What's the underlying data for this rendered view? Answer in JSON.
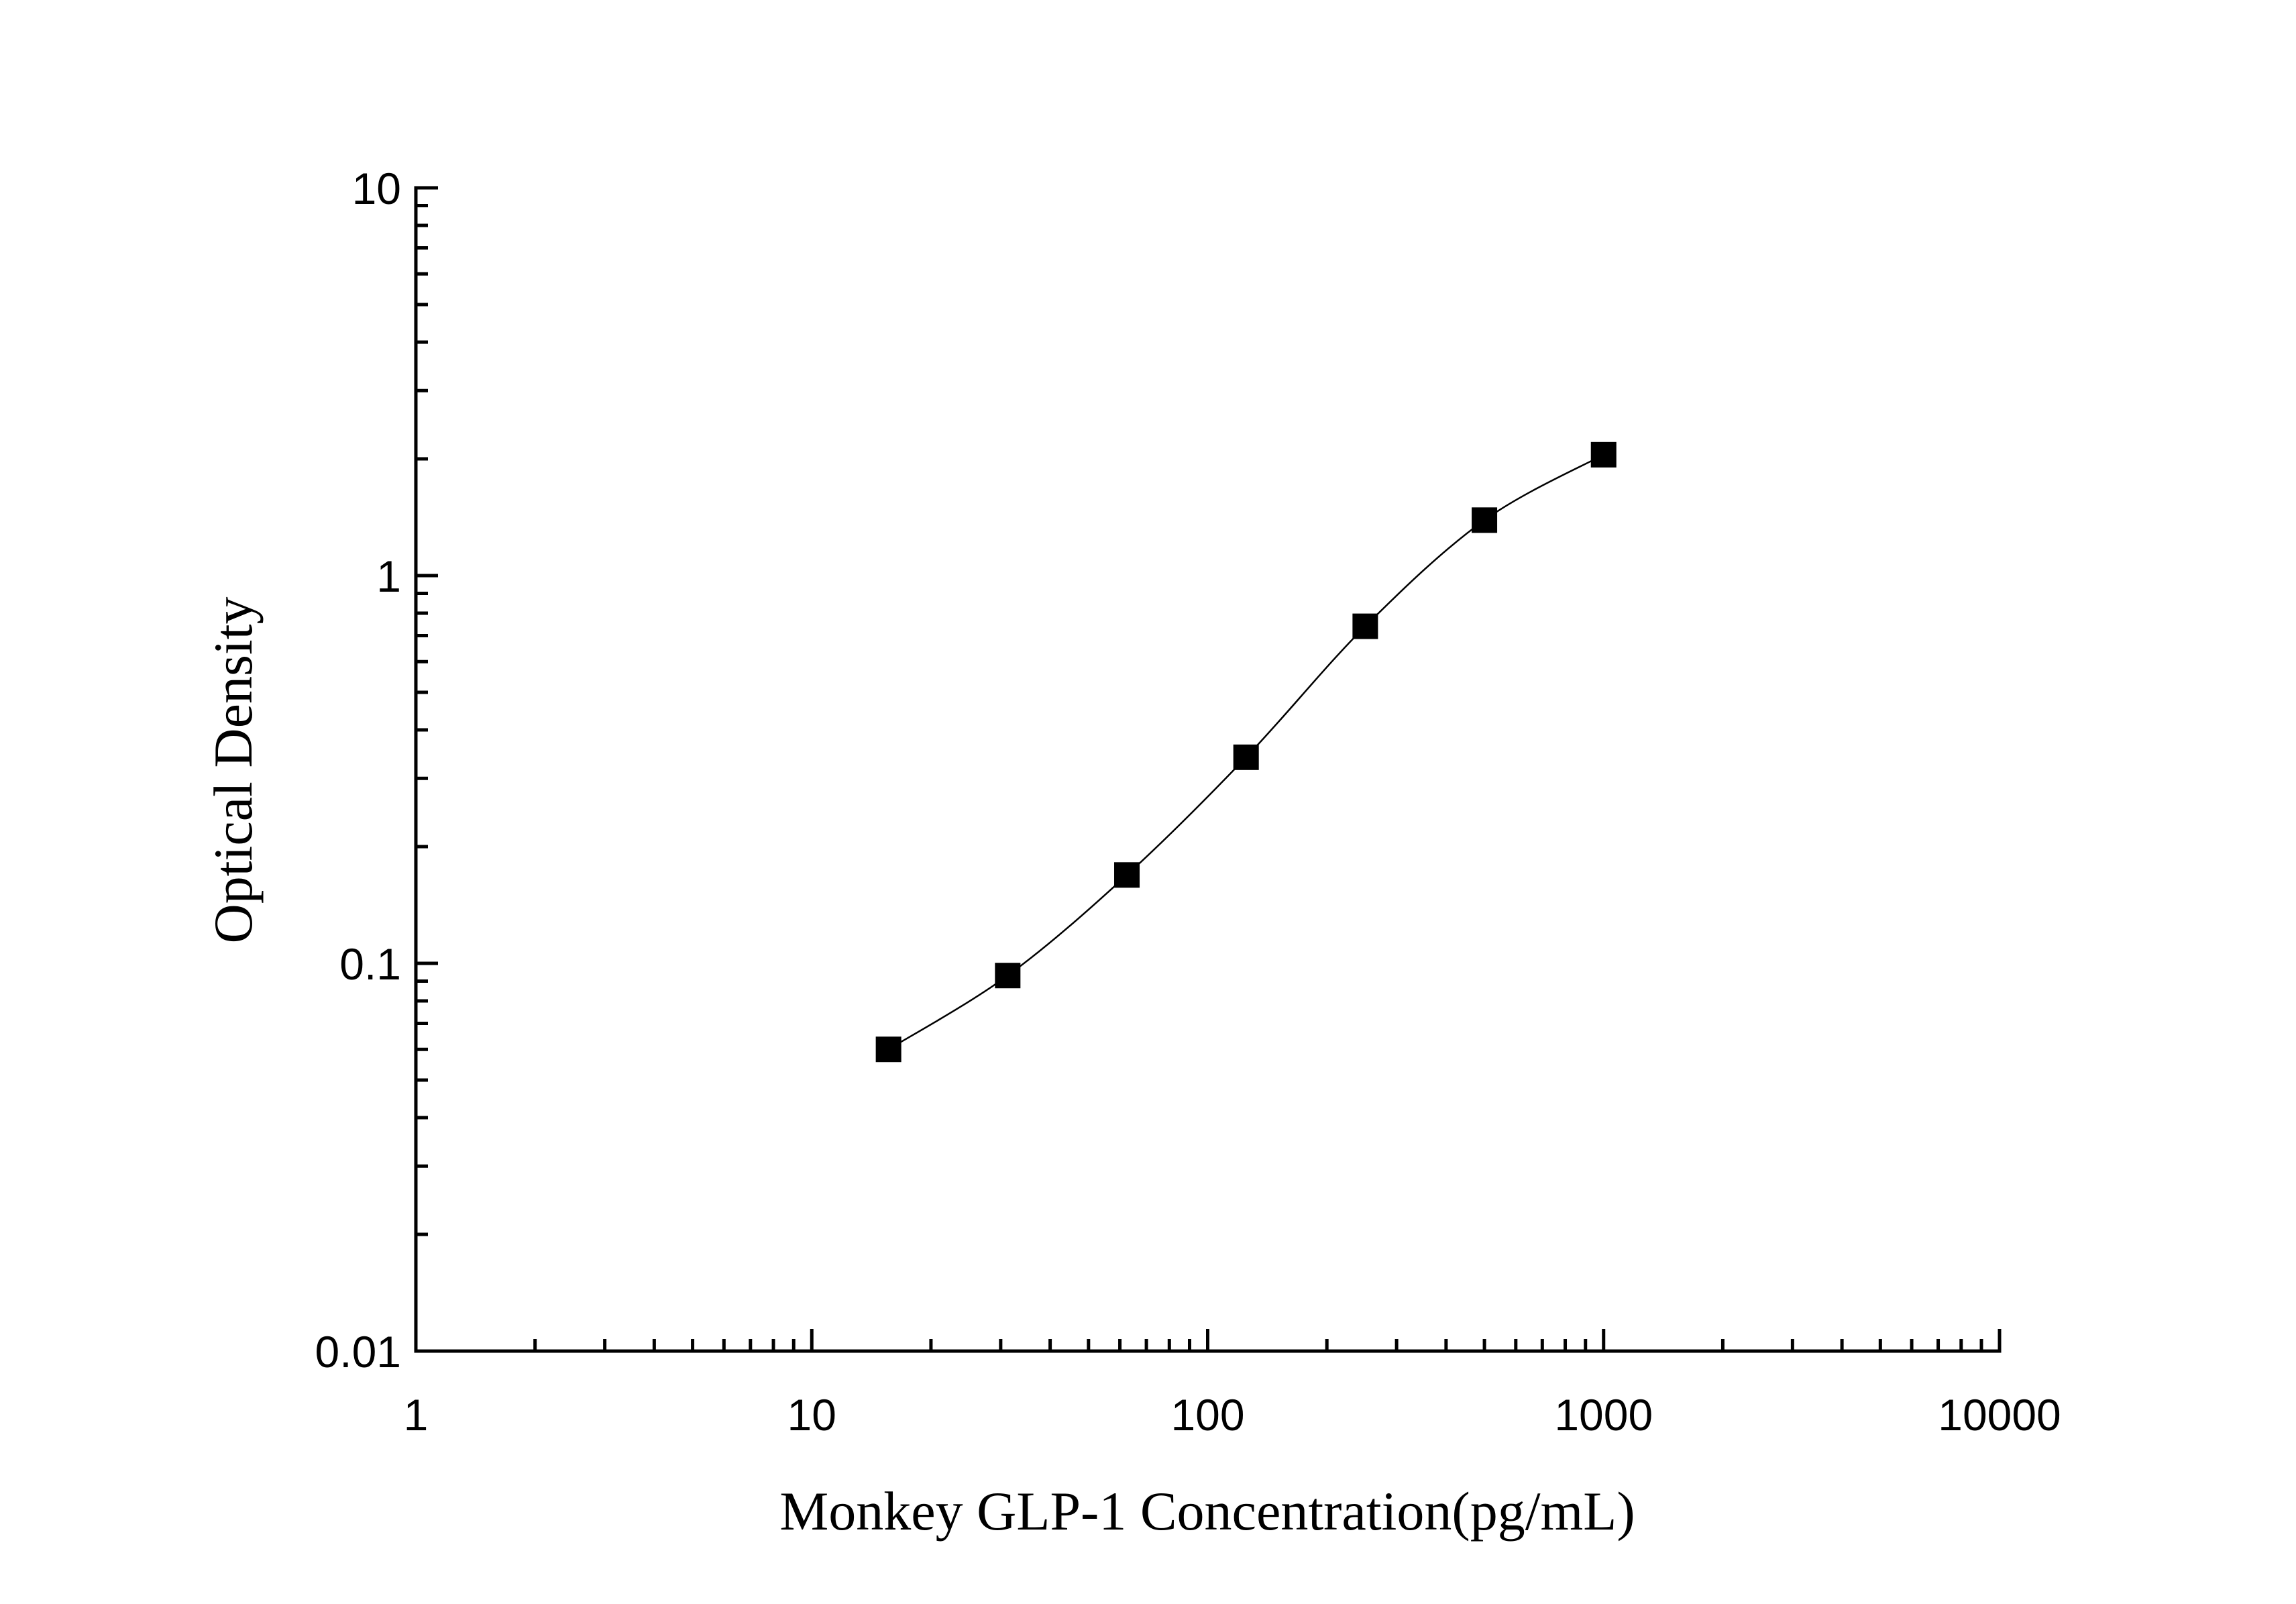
{
  "chart_data": {
    "type": "scatter",
    "x_label": "Monkey GLP-1 Concentration(pg/mL)",
    "y_label": "Optical Density",
    "x": [
      15.625,
      31.25,
      62.5,
      125,
      250,
      500,
      1000
    ],
    "values": [
      0.06,
      0.093,
      0.169,
      0.34,
      0.74,
      1.39,
      2.05
    ],
    "color": "#000000",
    "fit_curve": true,
    "xscale": "log",
    "yscale": "log",
    "xlim": [
      1,
      10000
    ],
    "xticks": [
      1,
      10,
      100,
      1000,
      10000
    ],
    "ylim": [
      0.01,
      10
    ],
    "yticks": [
      0.01,
      0.1,
      1,
      10
    ],
    "minor_ticks": true
  }
}
